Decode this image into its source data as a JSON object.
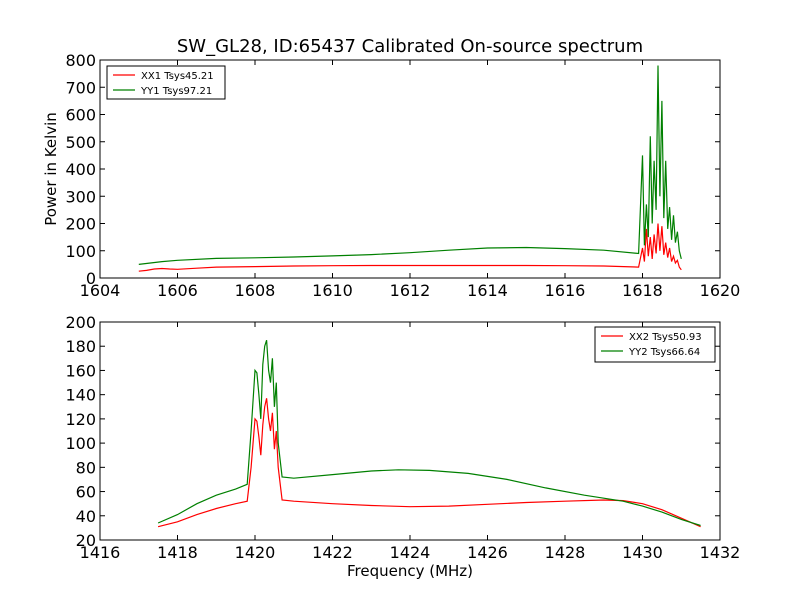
{
  "chart_data": [
    {
      "type": "line",
      "title": "SW_GL28, ID:65437 Calibrated On-source spectrum",
      "xlabel": "",
      "ylabel": "Power in Kelvin",
      "xlim": [
        1604,
        1620
      ],
      "ylim": [
        0,
        800
      ],
      "xticks": [
        1604,
        1606,
        1608,
        1610,
        1612,
        1614,
        1616,
        1618,
        1620
      ],
      "yticks": [
        0,
        100,
        200,
        300,
        400,
        500,
        600,
        700,
        800
      ],
      "grid": false,
      "legend_position": "top-left",
      "series": [
        {
          "name": "XX1 Tsys45.21",
          "color": "#ff0000",
          "x": [
            1605.0,
            1605.2,
            1605.4,
            1605.6,
            1605.8,
            1606.0,
            1606.5,
            1607.0,
            1608.0,
            1609.0,
            1610.0,
            1611.0,
            1612.0,
            1613.0,
            1614.0,
            1615.0,
            1616.0,
            1617.0,
            1617.9,
            1618.0,
            1618.05,
            1618.1,
            1618.15,
            1618.2,
            1618.25,
            1618.3,
            1618.35,
            1618.4,
            1618.45,
            1618.5,
            1618.55,
            1618.6,
            1618.65,
            1618.7,
            1618.75,
            1618.8,
            1618.85,
            1618.9,
            1618.95,
            1619.0
          ],
          "y": [
            25,
            28,
            33,
            35,
            33,
            32,
            36,
            40,
            42,
            44,
            45,
            46,
            46,
            46,
            46,
            46,
            45,
            44,
            40,
            110,
            60,
            180,
            80,
            150,
            70,
            160,
            90,
            200,
            100,
            190,
            85,
            130,
            75,
            110,
            60,
            80,
            55,
            65,
            40,
            30
          ]
        },
        {
          "name": "YY1 Tsys97.21",
          "color": "#008000",
          "x": [
            1605.0,
            1605.3,
            1605.6,
            1606.0,
            1607.0,
            1608.0,
            1609.0,
            1610.0,
            1611.0,
            1612.0,
            1613.0,
            1614.0,
            1615.0,
            1616.0,
            1617.0,
            1617.9,
            1618.0,
            1618.05,
            1618.1,
            1618.15,
            1618.2,
            1618.25,
            1618.3,
            1618.35,
            1618.4,
            1618.45,
            1618.5,
            1618.55,
            1618.6,
            1618.65,
            1618.7,
            1618.75,
            1618.8,
            1618.85,
            1618.9,
            1618.95,
            1619.0
          ],
          "y": [
            50,
            55,
            60,
            65,
            72,
            74,
            77,
            81,
            86,
            93,
            102,
            110,
            112,
            108,
            102,
            90,
            450,
            120,
            270,
            150,
            520,
            200,
            430,
            250,
            780,
            300,
            650,
            220,
            430,
            180,
            260,
            140,
            230,
            130,
            170,
            100,
            70
          ]
        }
      ]
    },
    {
      "type": "line",
      "title": "",
      "xlabel": "Frequency (MHz)",
      "ylabel": "",
      "xlim": [
        1416,
        1432
      ],
      "ylim": [
        20,
        200
      ],
      "xticks": [
        1416,
        1418,
        1420,
        1422,
        1424,
        1426,
        1428,
        1430,
        1432
      ],
      "yticks": [
        20,
        40,
        60,
        80,
        100,
        120,
        140,
        160,
        180,
        200
      ],
      "grid": false,
      "legend_position": "top-right",
      "series": [
        {
          "name": "XX2 Tsys50.93",
          "color": "#ff0000",
          "x": [
            1417.5,
            1418.0,
            1418.5,
            1419.0,
            1419.5,
            1419.8,
            1419.9,
            1420.0,
            1420.05,
            1420.1,
            1420.15,
            1420.2,
            1420.25,
            1420.3,
            1420.35,
            1420.4,
            1420.45,
            1420.5,
            1420.55,
            1420.6,
            1420.7,
            1421.0,
            1422.0,
            1423.0,
            1424.0,
            1425.0,
            1426.0,
            1427.0,
            1428.0,
            1429.0,
            1429.5,
            1430.0,
            1430.5,
            1431.0,
            1431.5
          ],
          "y": [
            31,
            35,
            41,
            46,
            50,
            52,
            80,
            120,
            118,
            105,
            90,
            115,
            130,
            137,
            120,
            110,
            125,
            95,
            110,
            80,
            53,
            52,
            50,
            48.5,
            47.5,
            48,
            49.5,
            51,
            52,
            53,
            52.5,
            50,
            45,
            38,
            31
          ]
        },
        {
          "name": "YY2 Tsys66.64",
          "color": "#008000",
          "x": [
            1417.5,
            1418.0,
            1418.5,
            1419.0,
            1419.5,
            1419.8,
            1419.9,
            1420.0,
            1420.05,
            1420.1,
            1420.15,
            1420.2,
            1420.25,
            1420.3,
            1420.35,
            1420.4,
            1420.45,
            1420.5,
            1420.55,
            1420.6,
            1420.7,
            1421.0,
            1422.0,
            1423.0,
            1423.7,
            1424.5,
            1425.5,
            1426.5,
            1427.5,
            1428.5,
            1429.5,
            1430.0,
            1430.5,
            1431.0,
            1431.5
          ],
          "y": [
            34,
            41,
            50,
            57,
            62,
            66,
            110,
            160,
            158,
            140,
            120,
            165,
            180,
            185,
            160,
            150,
            170,
            130,
            150,
            100,
            72,
            71,
            74,
            77,
            78,
            77.5,
            75,
            70,
            63,
            57,
            52,
            48,
            43,
            37,
            32
          ]
        }
      ]
    }
  ]
}
